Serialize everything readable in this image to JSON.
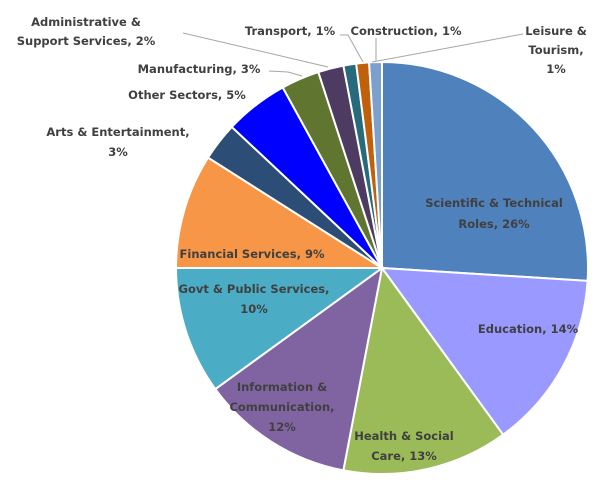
{
  "chart_data": {
    "type": "pie",
    "title": "",
    "start_angle": "12 o'clock",
    "direction": "clockwise",
    "slices": [
      {
        "label": "Scientific & Technical Roles",
        "lines": [
          "Scientific & Technical",
          "Roles, 26%"
        ],
        "value": 26,
        "color": "#4f81bd"
      },
      {
        "label": "Education",
        "lines": [
          "Education, 14%"
        ],
        "value": 14,
        "color": "#9999ff"
      },
      {
        "label": "Health & Social Care",
        "lines": [
          "Health & Social",
          "Care, 13%"
        ],
        "value": 13,
        "color": "#9bbb59"
      },
      {
        "label": "Information & Communication",
        "lines": [
          "Information &",
          "Communication,",
          "12%"
        ],
        "value": 12,
        "color": "#8064a2"
      },
      {
        "label": "Govt & Public Services",
        "lines": [
          "Govt & Public Services,",
          "10%"
        ],
        "value": 10,
        "color": "#4bacc6"
      },
      {
        "label": "Financial Services",
        "lines": [
          "Financial Services, 9%"
        ],
        "value": 9,
        "color": "#f79646"
      },
      {
        "label": "Arts & Entertainment",
        "lines": [
          "Arts & Entertainment,",
          "3%"
        ],
        "value": 3,
        "color": "#2c4d75"
      },
      {
        "label": "Other Sectors",
        "lines": [
          "Other Sectors, 5%"
        ],
        "value": 5,
        "color": "#0000ff"
      },
      {
        "label": "Manufacturing",
        "lines": [
          "Manufacturing, 3%"
        ],
        "value": 3,
        "color": "#5f7530"
      },
      {
        "label": "Administrative & Support Services",
        "lines": [
          "Administrative &",
          "Support Services, 2%"
        ],
        "value": 2,
        "color": "#4d3b62"
      },
      {
        "label": "Transport",
        "lines": [
          "Transport, 1%"
        ],
        "value": 1,
        "color": "#276a7c"
      },
      {
        "label": "Construction",
        "lines": [
          "Construction, 1%"
        ],
        "value": 1,
        "color": "#c0600a"
      },
      {
        "label": "Leisure & Tourism",
        "lines": [
          "Leisure &",
          "Tourism,",
          "1%"
        ],
        "value": 1,
        "color": "#7ba0cd"
      }
    ],
    "units": "%",
    "legend": "none (data labels)"
  }
}
